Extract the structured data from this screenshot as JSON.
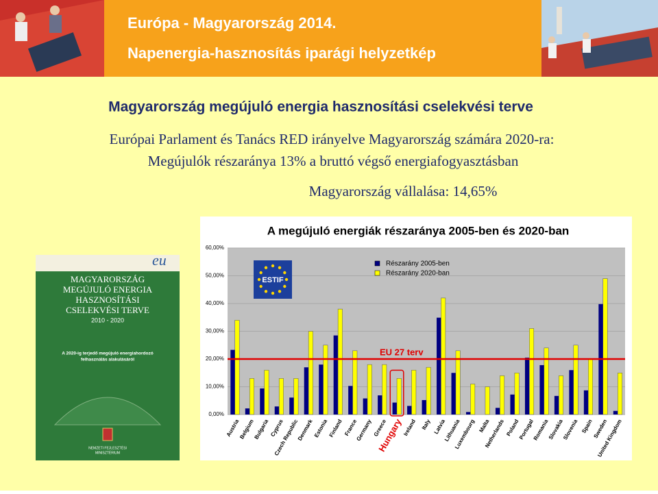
{
  "header": {
    "title": "Európa - Magyarország 2014.",
    "subtitle": "Napenergia-hasznosítás iparági helyzetkép"
  },
  "heading": "Magyarország megújuló energia hasznosítási cselekvési terve",
  "lines": [
    "Európai Parlament és Tanács RED irányelve Magyarország számára 2020-ra:",
    "Megújulók részaránya 13% a bruttó végső energiafogyasztásban",
    "Magyarország vállalása: 14,65%"
  ],
  "book": {
    "logo": "eu",
    "title": [
      "MAGYARORSZÁG",
      "MEGÚJULÓ ENERGIA",
      "HASZNOSÍTÁSI",
      "CSELEKVÉSI TERVE"
    ],
    "years": "2010 - 2020",
    "subtitle": [
      "A 2020-ig terjedő megújuló energiahordozó",
      "felhasználás alakulásáról"
    ],
    "publisher": [
      "NEMZETI FEJLESZTÉSI",
      "MINISZTÉRIUM"
    ]
  },
  "chart_data": {
    "type": "bar",
    "title": "A megújuló energiák részaránya 2005-ben és 2020-ban",
    "logo_text": "ESTIF",
    "categories": [
      "Austria",
      "Belgium",
      "Bulgaria",
      "Cyprus",
      "Czech Republic",
      "Denmark",
      "Estonia",
      "Finland",
      "France",
      "Germany",
      "Greece",
      "Hungary",
      "Ireland",
      "Italy",
      "Latvia",
      "Lithuania",
      "Luxembourg",
      "Malta",
      "Netherlands",
      "Poland",
      "Portugal",
      "Romania",
      "Slovakia",
      "Slovenia",
      "Spain",
      "Sweden",
      "United Kingdom"
    ],
    "series": [
      {
        "name": "Részarány 2005-ben",
        "color": "#000080",
        "values": [
          23.3,
          2.2,
          9.4,
          2.9,
          6.1,
          17,
          18,
          28.5,
          10.3,
          5.8,
          6.9,
          4.3,
          3.1,
          5.2,
          34.9,
          15,
          0.9,
          0,
          2.4,
          7.2,
          20.5,
          17.8,
          6.7,
          16,
          8.7,
          39.8,
          1.3
        ]
      },
      {
        "name": "Részarány 2020-ban",
        "color": "#ffff00",
        "values": [
          34,
          13,
          16,
          13,
          13,
          30,
          25,
          38,
          23,
          18,
          18,
          13,
          16,
          17,
          42,
          23,
          11,
          10,
          14,
          15,
          31,
          24,
          14,
          25,
          20,
          49,
          15
        ]
      }
    ],
    "ylim": [
      0,
      60
    ],
    "yticks": [
      {
        "value": 0,
        "label": "0,00%"
      },
      {
        "value": 10,
        "label": "10,00%"
      },
      {
        "value": 20,
        "label": "20,00%"
      },
      {
        "value": 30,
        "label": "30,00%"
      },
      {
        "value": 40,
        "label": "40,00%"
      },
      {
        "value": 50,
        "label": "50,00%"
      },
      {
        "value": 60,
        "label": "60,00%"
      }
    ],
    "annotation": {
      "text": "EU 27 terv",
      "value": 20,
      "color": "#e00000"
    },
    "highlight": "Hungary"
  }
}
